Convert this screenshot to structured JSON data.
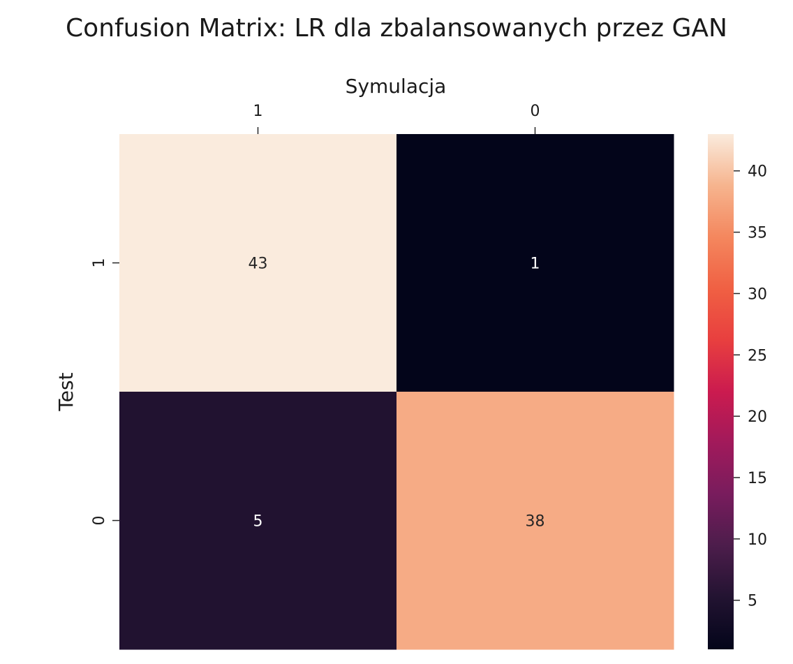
{
  "chart_data": {
    "type": "heatmap",
    "title": "Confusion Matrix: LR dla zbalansowanych przez GAN",
    "xlabel": "Symulacja",
    "ylabel": "Test",
    "x_categories": [
      "1",
      "0"
    ],
    "y_categories": [
      "1",
      "0"
    ],
    "values": [
      [
        43,
        1
      ],
      [
        5,
        38
      ]
    ],
    "annotations": [
      [
        "43",
        "1"
      ],
      [
        "5",
        "38"
      ]
    ],
    "x_axis_position": "top",
    "colormap": "rocket",
    "colorbar": {
      "vmin": 1,
      "vmax": 43,
      "ticks": [
        5,
        10,
        15,
        20,
        25,
        30,
        35,
        40
      ],
      "tick_labels": [
        "5",
        "10",
        "15",
        "20",
        "25",
        "30",
        "35",
        "40"
      ],
      "position": "right"
    },
    "grid": false
  }
}
